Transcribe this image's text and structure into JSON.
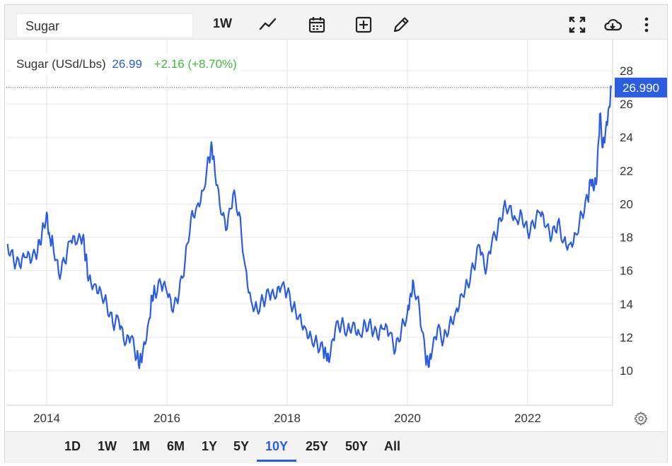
{
  "toolbar": {
    "symbol_value": "Sugar",
    "interval_label": "1W",
    "icons": [
      "line-chart-icon",
      "calendar-icon",
      "add-box-icon",
      "pencil-icon",
      "fullscreen-icon",
      "cloud-download-icon",
      "more-vert-icon"
    ]
  },
  "legend": {
    "name": "Sugar (USd/Lbs)",
    "last": "26.99",
    "change": "+2.16 (+8.70%)"
  },
  "price_tag": "26.990",
  "ranges": [
    {
      "label": "1D",
      "active": false
    },
    {
      "label": "1W",
      "active": false
    },
    {
      "label": "1M",
      "active": false
    },
    {
      "label": "6M",
      "active": false
    },
    {
      "label": "1Y",
      "active": false
    },
    {
      "label": "5Y",
      "active": false
    },
    {
      "label": "10Y",
      "active": true
    },
    {
      "label": "25Y",
      "active": false
    },
    {
      "label": "50Y",
      "active": false
    },
    {
      "label": "All",
      "active": false
    }
  ],
  "colors": {
    "line": "#2b5de0",
    "grid": "#e6e6e6",
    "change_positive": "#3ebb3e",
    "tag_bg": "#2b5de0"
  },
  "chart_data": {
    "type": "line",
    "title": "Sugar (USd/Lbs)",
    "x_ticks": [
      "2014",
      "2016",
      "2018",
      "2020",
      "2022"
    ],
    "y_ticks": [
      10,
      12,
      14,
      16,
      18,
      20,
      22,
      24,
      26,
      28
    ],
    "xlim": [
      2013.35,
      2023.39
    ],
    "ylim": [
      8.5,
      28.5
    ],
    "grid": true,
    "legend": "top-left",
    "series": [
      {
        "name": "Sugar (USd/Lbs)",
        "x": [
          2013.35,
          2013.45,
          2013.55,
          2013.65,
          2013.75,
          2013.85,
          2013.92,
          2014.0,
          2014.05,
          2014.1,
          2014.2,
          2014.3,
          2014.4,
          2014.5,
          2014.6,
          2014.65,
          2014.7,
          2014.8,
          2014.9,
          2015.0,
          2015.1,
          2015.2,
          2015.3,
          2015.4,
          2015.5,
          2015.55,
          2015.6,
          2015.7,
          2015.75,
          2015.8,
          2015.9,
          2016.0,
          2016.1,
          2016.2,
          2016.3,
          2016.4,
          2016.5,
          2016.6,
          2016.7,
          2016.75,
          2016.8,
          2016.9,
          2017.0,
          2017.1,
          2017.2,
          2017.3,
          2017.4,
          2017.5,
          2017.6,
          2017.7,
          2017.8,
          2017.9,
          2018.0,
          2018.1,
          2018.2,
          2018.3,
          2018.4,
          2018.5,
          2018.6,
          2018.65,
          2018.7,
          2018.8,
          2018.9,
          2019.0,
          2019.1,
          2019.2,
          2019.3,
          2019.4,
          2019.5,
          2019.6,
          2019.7,
          2019.8,
          2019.9,
          2020.0,
          2020.05,
          2020.1,
          2020.2,
          2020.3,
          2020.35,
          2020.4,
          2020.5,
          2020.6,
          2020.7,
          2020.8,
          2020.9,
          2021.0,
          2021.1,
          2021.2,
          2021.3,
          2021.4,
          2021.5,
          2021.6,
          2021.7,
          2021.8,
          2021.9,
          2022.0,
          2022.1,
          2022.2,
          2022.3,
          2022.4,
          2022.5,
          2022.6,
          2022.7,
          2022.8,
          2022.9,
          2023.0,
          2023.05,
          2023.1,
          2023.15,
          2023.2,
          2023.25,
          2023.3,
          2023.35,
          2023.39
        ],
        "values": [
          17.6,
          16.6,
          16.3,
          16.8,
          16.6,
          17.2,
          18.2,
          19.5,
          18.0,
          17.8,
          15.8,
          16.5,
          17.8,
          17.6,
          18.0,
          16.8,
          15.5,
          15.2,
          14.8,
          14.0,
          12.8,
          13.0,
          11.5,
          12.0,
          10.8,
          10.5,
          11.2,
          13.0,
          14.5,
          14.7,
          15.2,
          14.7,
          13.5,
          14.6,
          16.5,
          19.2,
          19.9,
          20.8,
          22.8,
          23.4,
          21.8,
          19.4,
          18.5,
          20.6,
          19.5,
          16.3,
          14.2,
          13.7,
          14.2,
          14.6,
          14.3,
          15.0,
          14.7,
          13.8,
          13.3,
          12.6,
          12.0,
          11.6,
          11.2,
          10.8,
          10.5,
          12.5,
          12.8,
          12.4,
          12.9,
          12.2,
          12.8,
          12.6,
          12.0,
          12.5,
          12.2,
          11.2,
          12.5,
          13.5,
          14.6,
          15.3,
          13.7,
          10.8,
          10.2,
          10.9,
          12.5,
          11.8,
          12.8,
          13.5,
          14.6,
          15.2,
          16.2,
          17.5,
          15.8,
          17.6,
          18.4,
          19.8,
          19.9,
          19.1,
          19.4,
          18.3,
          18.7,
          19.5,
          18.6,
          18.0,
          18.9,
          17.8,
          17.6,
          18.2,
          19.4,
          20.3,
          21.4,
          20.8,
          21.6,
          25.4,
          23.4,
          24.6,
          25.8,
          26.99
        ]
      }
    ]
  }
}
